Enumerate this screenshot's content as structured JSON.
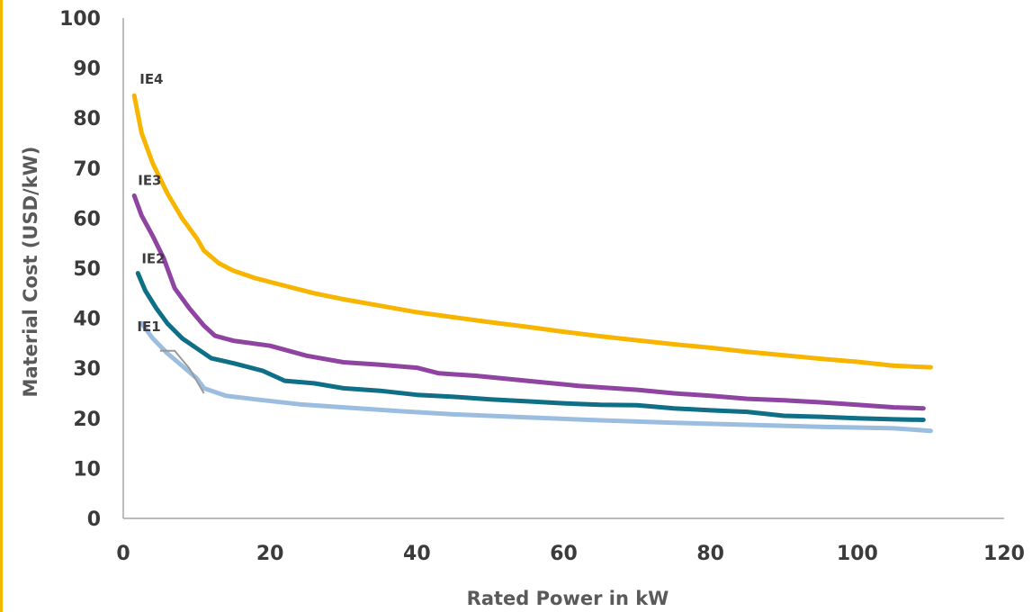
{
  "chart_data": {
    "type": "line",
    "title": "",
    "xlabel": "Rated Power in kW",
    "ylabel": "Material Cost (USD/kW)",
    "xlim": [
      0,
      120
    ],
    "ylim": [
      0,
      100
    ],
    "xticks": [
      0,
      20,
      40,
      60,
      80,
      100,
      120
    ],
    "yticks": [
      0,
      10,
      20,
      30,
      40,
      50,
      60,
      70,
      80,
      90,
      100
    ],
    "grid": false,
    "legend": "none",
    "series": [
      {
        "name": "IE4",
        "color": "#f7b500",
        "x": [
          1.5,
          2.5,
          4,
          6,
          8,
          10,
          11,
          13,
          15,
          18,
          22,
          26,
          30,
          35,
          40,
          45,
          50,
          55,
          60,
          65,
          70,
          75,
          80,
          85,
          90,
          95,
          100,
          105,
          110
        ],
        "y": [
          84.5,
          77,
          71,
          65,
          60,
          56,
          53.5,
          51,
          49.5,
          48,
          46.5,
          45,
          43.8,
          42.5,
          41.2,
          40.2,
          39.2,
          38.3,
          37.3,
          36.4,
          35.6,
          34.8,
          34.1,
          33.3,
          32.6,
          31.9,
          31.3,
          30.5,
          30.2
        ]
      },
      {
        "name": "IE3",
        "color": "#8e44a0",
        "x": [
          1.5,
          2.5,
          4,
          5.5,
          7,
          9,
          11,
          12.5,
          15,
          20,
          25,
          30,
          35,
          40,
          43,
          48,
          55,
          62,
          70,
          75,
          80,
          85,
          90,
          95,
          100,
          105,
          109
        ],
        "y": [
          64.5,
          60.5,
          56.5,
          52,
          46,
          42,
          38.5,
          36.5,
          35.5,
          34.5,
          32.5,
          31.2,
          30.7,
          30.1,
          29,
          28.5,
          27.5,
          26.5,
          25.7,
          25,
          24.5,
          23.9,
          23.6,
          23.2,
          22.7,
          22.2,
          22
        ]
      },
      {
        "name": "IE2",
        "color": "#0f6f86",
        "x": [
          2,
          3,
          4.5,
          6,
          8,
          10,
          12,
          15,
          19,
          22,
          26,
          30,
          35,
          40,
          45,
          50,
          55,
          60,
          65,
          70,
          75,
          80,
          85,
          90,
          95,
          100,
          105,
          109
        ],
        "y": [
          49,
          45.5,
          42,
          39,
          36,
          34,
          32,
          31,
          29.5,
          27.5,
          27,
          26,
          25.5,
          24.7,
          24.3,
          23.8,
          23.4,
          23,
          22.7,
          22.6,
          22,
          21.6,
          21.3,
          20.5,
          20.3,
          20,
          19.8,
          19.7
        ]
      },
      {
        "name": "IE1",
        "color": "#9bbde0",
        "x": [
          2.5,
          4,
          6,
          8,
          10,
          11,
          12,
          14,
          18,
          24,
          30,
          38,
          45,
          55,
          65,
          75,
          85,
          95,
          105,
          110
        ],
        "y": [
          39,
          36,
          33,
          30.5,
          28,
          26,
          25.5,
          24.5,
          23.8,
          22.8,
          22.2,
          21.4,
          20.8,
          20.2,
          19.6,
          19.1,
          18.7,
          18.3,
          18,
          17.5
        ]
      }
    ],
    "annotation": {
      "color": "#9a9a9a",
      "x": [
        5,
        7,
        9,
        11
      ],
      "y": [
        33.5,
        33.5,
        30,
        25
      ]
    }
  }
}
